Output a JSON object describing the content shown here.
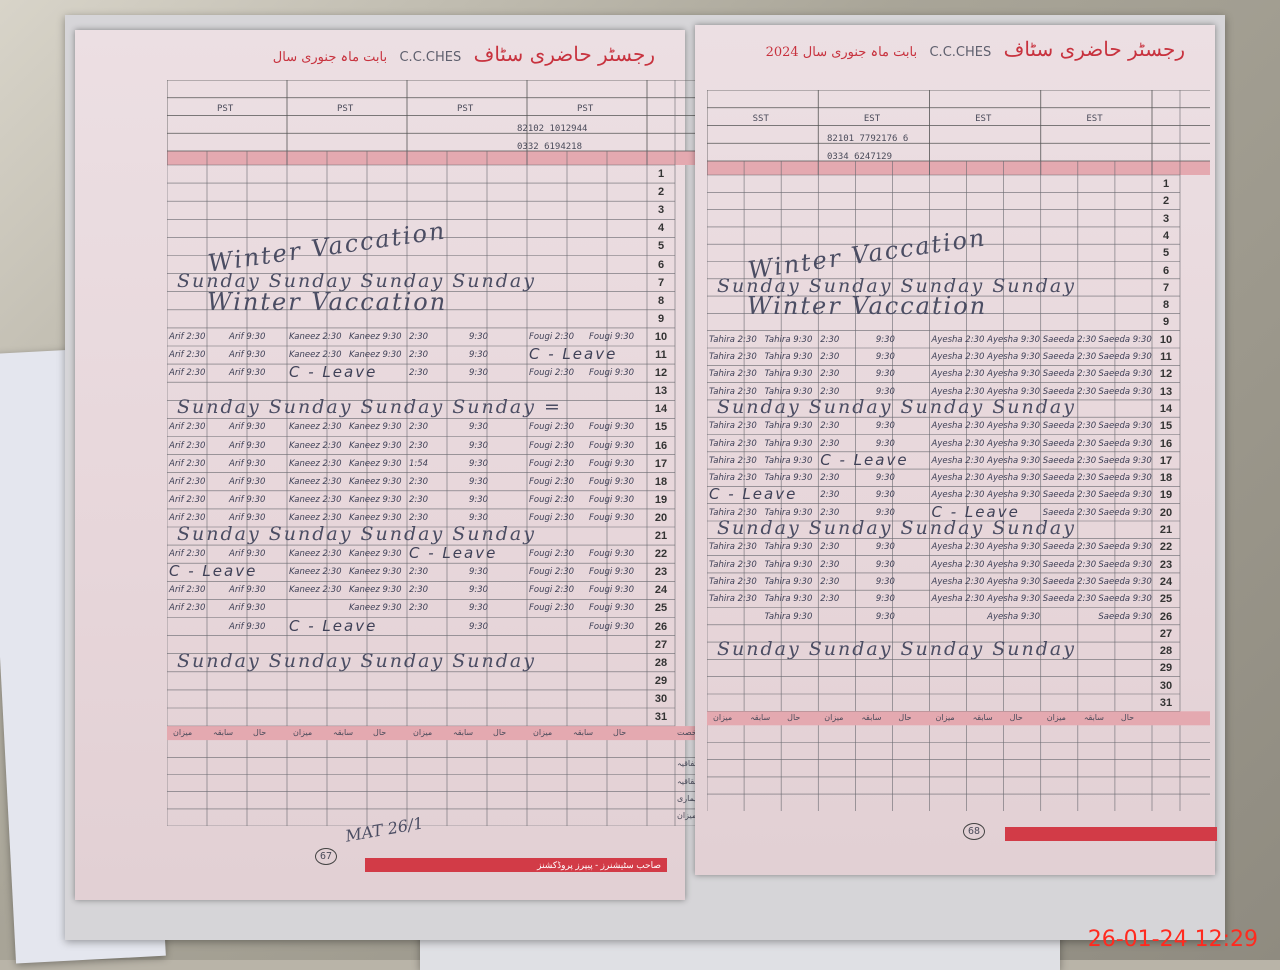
{
  "photo_timestamp": "26-01-24  12:29",
  "left_page": {
    "title_urdu": "رجسٹر حاضری سٹاف",
    "title_hand": "C.C.CHES",
    "title_suffix": "بابت ماہ جنوری سال",
    "teachers_row": [
      "PST",
      "PST",
      "PST",
      "PST"
    ],
    "phone_numbers": [
      "82102 1012944",
      "0332 6194218"
    ],
    "page_number": "67",
    "publisher": "صاحب سٹیشنرز - پیپرز پروڈکشنز",
    "footer_labels": [
      "کل رخصت",
      "اتفاقیہ",
      "استحقاقیہ",
      "بیماری",
      "میزان"
    ],
    "footer_cols": [
      "میزان",
      "سابقہ",
      "حال",
      "میزان",
      "سابقہ",
      "حال",
      "میزان",
      "سابقہ",
      "حال",
      "میزان",
      "سابقہ",
      "حال"
    ],
    "signature": "MAT 26/1",
    "annotations": [
      {
        "day": 5,
        "text": "Winter      Vaccation"
      },
      {
        "day": 7,
        "text": "Sunday   Sunday   Sunday   Sunday"
      },
      {
        "day": 8,
        "text": "Winter   Vaccation"
      },
      {
        "day": 14,
        "text": "Sunday   Sunday   Sunday   Sunday ="
      },
      {
        "day": 21,
        "text": "Sunday   Sunday   Sunday   Sunday"
      },
      {
        "day": 28,
        "text": "Sunday   Sunday   Sunday   Sunday"
      }
    ],
    "entries": [
      {
        "day": 10,
        "cells": [
          "Arif 2:30",
          "Arif 9:30",
          "Kaneez 2:30",
          "Kaneez 9:30",
          "2:30",
          "9:30",
          "Fougi 2:30",
          "Fougi 9:30"
        ]
      },
      {
        "day": 11,
        "cells": [
          "Arif 2:30",
          "Arif 9:30",
          "Kaneez 2:30",
          "Kaneez 9:30",
          "2:30",
          "9:30",
          "C - Leave",
          ""
        ]
      },
      {
        "day": 12,
        "cells": [
          "Arif 2:30",
          "Arif 9:30",
          "C - Leave",
          "",
          "2:30",
          "9:30",
          "Fougi 2:30",
          "Fougi 9:30"
        ]
      },
      {
        "day": 15,
        "cells": [
          "Arif 2:30",
          "Arif 9:30",
          "Kaneez 2:30",
          "Kaneez 9:30",
          "2:30",
          "9:30",
          "Fougi 2:30",
          "Fougi 9:30"
        ]
      },
      {
        "day": 16,
        "cells": [
          "Arif 2:30",
          "Arif 9:30",
          "Kaneez 2:30",
          "Kaneez 9:30",
          "2:30",
          "9:30",
          "Fougi 2:30",
          "Fougi 9:30"
        ]
      },
      {
        "day": 17,
        "cells": [
          "Arif 2:30",
          "Arif 9:30",
          "Kaneez 2:30",
          "Kaneez 9:30",
          "1:54",
          "9:30",
          "Fougi 2:30",
          "Fougi 9:30"
        ]
      },
      {
        "day": 18,
        "cells": [
          "Arif 2:30",
          "Arif 9:30",
          "Kaneez 2:30",
          "Kaneez 9:30",
          "2:30",
          "9:30",
          "Fougi 2:30",
          "Fougi 9:30"
        ]
      },
      {
        "day": 19,
        "cells": [
          "Arif 2:30",
          "Arif 9:30",
          "Kaneez 2:30",
          "Kaneez 9:30",
          "2:30",
          "9:30",
          "Fougi 2:30",
          "Fougi 9:30"
        ]
      },
      {
        "day": 20,
        "cells": [
          "Arif 2:30",
          "Arif 9:30",
          "Kaneez 2:30",
          "Kaneez 9:30",
          "2:30",
          "9:30",
          "Fougi 2:30",
          "Fougi 9:30"
        ]
      },
      {
        "day": 22,
        "cells": [
          "Arif 2:30",
          "Arif 9:30",
          "Kaneez 2:30",
          "Kaneez 9:30",
          "C - Leave",
          "",
          "Fougi 2:30",
          "Fougi 9:30"
        ]
      },
      {
        "day": 23,
        "cells": [
          "C - Leave",
          "",
          "Kaneez 2:30",
          "Kaneez 9:30",
          "2:30",
          "9:30",
          "Fougi 2:30",
          "Fougi 9:30"
        ]
      },
      {
        "day": 24,
        "cells": [
          "Arif 2:30",
          "Arif 9:30",
          "Kaneez 2:30",
          "Kaneez 9:30",
          "2:30",
          "9:30",
          "Fougi 2:30",
          "Fougi 9:30"
        ]
      },
      {
        "day": 25,
        "cells": [
          "Arif 2:30",
          "Arif 9:30",
          "",
          "Kaneez 9:30",
          "2:30",
          "9:30",
          "Fougi 2:30",
          "Fougi 9:30"
        ]
      },
      {
        "day": 26,
        "cells": [
          "",
          "Arif 9:30",
          "C - Leave",
          "",
          "",
          "9:30",
          "",
          "Fougi 9:30"
        ]
      }
    ]
  },
  "right_page": {
    "title_urdu": "رجسٹر حاضری سٹاف",
    "title_hand": "C.C.CHES",
    "title_suffix": "بابت ماہ جنوری سال 2024",
    "teachers_row": [
      "EST",
      "EST",
      "EST",
      "SST"
    ],
    "phone_numbers": [
      "82101 7792176 6",
      "0334 6247129"
    ],
    "page_number": "68",
    "footer_cols": [
      "میزان",
      "سابقہ",
      "حال",
      "میزان",
      "سابقہ",
      "حال",
      "میزان",
      "سابقہ",
      "حال",
      "میزان",
      "سابقہ",
      "حال"
    ],
    "annotations": [
      {
        "day": 5,
        "text": "Winter      Vaccation"
      },
      {
        "day": 7,
        "text": "Sunday    Sunday    Sunday    Sunday"
      },
      {
        "day": 8,
        "text": "Winter   Vaccation"
      },
      {
        "day": 14,
        "text": "Sunday    Sunday    Sunday    Sunday"
      },
      {
        "day": 21,
        "text": "Sunday    Sunday    Sunday    Sunday"
      },
      {
        "day": 28,
        "text": "Sunday    Sunday    Sunday    Sunday"
      }
    ],
    "entries": [
      {
        "day": 10,
        "cells": [
          "Tahira 2:30",
          "Tahira 9:30",
          "2:30",
          "9:30",
          "Ayesha 2:30",
          "Ayesha 9:30",
          "Saeeda 2:30",
          "Saeeda 9:30"
        ]
      },
      {
        "day": 11,
        "cells": [
          "Tahira 2:30",
          "Tahira 9:30",
          "2:30",
          "9:30",
          "Ayesha 2:30",
          "Ayesha 9:30",
          "Saeeda 2:30",
          "Saeeda 9:30"
        ]
      },
      {
        "day": 12,
        "cells": [
          "Tahira 2:30",
          "Tahira 9:30",
          "2:30",
          "9:30",
          "Ayesha 2:30",
          "Ayesha 9:30",
          "Saeeda 2:30",
          "Saeeda 9:30"
        ]
      },
      {
        "day": 13,
        "cells": [
          "Tahira 2:30",
          "Tahira 9:30",
          "2:30",
          "9:30",
          "Ayesha 2:30",
          "Ayesha 9:30",
          "Saeeda 2:30",
          "Saeeda 9:30"
        ]
      },
      {
        "day": 15,
        "cells": [
          "Tahira 2:30",
          "Tahira 9:30",
          "2:30",
          "9:30",
          "Ayesha 2:30",
          "Ayesha 9:30",
          "Saeeda 2:30",
          "Saeeda 9:30"
        ]
      },
      {
        "day": 16,
        "cells": [
          "Tahira 2:30",
          "Tahira 9:30",
          "2:30",
          "9:30",
          "Ayesha 2:30",
          "Ayesha 9:30",
          "Saeeda 2:30",
          "Saeeda 9:30"
        ]
      },
      {
        "day": 17,
        "cells": [
          "Tahira 2:30",
          "Tahira 9:30",
          "C - Leave",
          "",
          "Ayesha 2:30",
          "Ayesha 9:30",
          "Saeeda 2:30",
          "Saeeda 9:30"
        ]
      },
      {
        "day": 18,
        "cells": [
          "Tahira 2:30",
          "Tahira 9:30",
          "2:30",
          "9:30",
          "Ayesha 2:30",
          "Ayesha 9:30",
          "Saeeda 2:30",
          "Saeeda 9:30"
        ]
      },
      {
        "day": 19,
        "cells": [
          "C - Leave",
          "",
          "2:30",
          "9:30",
          "Ayesha 2:30",
          "Ayesha 9:30",
          "Saeeda 2:30",
          "Saeeda 9:30"
        ]
      },
      {
        "day": 20,
        "cells": [
          "Tahira 2:30",
          "Tahira 9:30",
          "2:30",
          "9:30",
          "C - Leave",
          "",
          "Saeeda 2:30",
          "Saeeda 9:30"
        ]
      },
      {
        "day": 22,
        "cells": [
          "Tahira 2:30",
          "Tahira 9:30",
          "2:30",
          "9:30",
          "Ayesha 2:30",
          "Ayesha 9:30",
          "Saeeda 2:30",
          "Saeeda 9:30"
        ]
      },
      {
        "day": 23,
        "cells": [
          "Tahira 2:30",
          "Tahira 9:30",
          "2:30",
          "9:30",
          "Ayesha 2:30",
          "Ayesha 9:30",
          "Saeeda 2:30",
          "Saeeda 9:30"
        ]
      },
      {
        "day": 24,
        "cells": [
          "Tahira 2:30",
          "Tahira 9:30",
          "2:30",
          "9:30",
          "Ayesha 2:30",
          "Ayesha 9:30",
          "Saeeda 2:30",
          "Saeeda 9:30"
        ]
      },
      {
        "day": 25,
        "cells": [
          "Tahira 2:30",
          "Tahira 9:30",
          "2:30",
          "9:30",
          "Ayesha 2:30",
          "Ayesha 9:30",
          "Saeeda 2:30",
          "Saeeda 9:30"
        ]
      },
      {
        "day": 26,
        "cells": [
          "",
          "Tahira 9:30",
          "",
          "9:30",
          "",
          "Ayesha 9:30",
          "",
          "Saeeda 9:30"
        ]
      }
    ]
  },
  "colors": {
    "ink": "#4b4d63",
    "register_red": "#c8323e",
    "timestamp": "#ff2a1f"
  }
}
